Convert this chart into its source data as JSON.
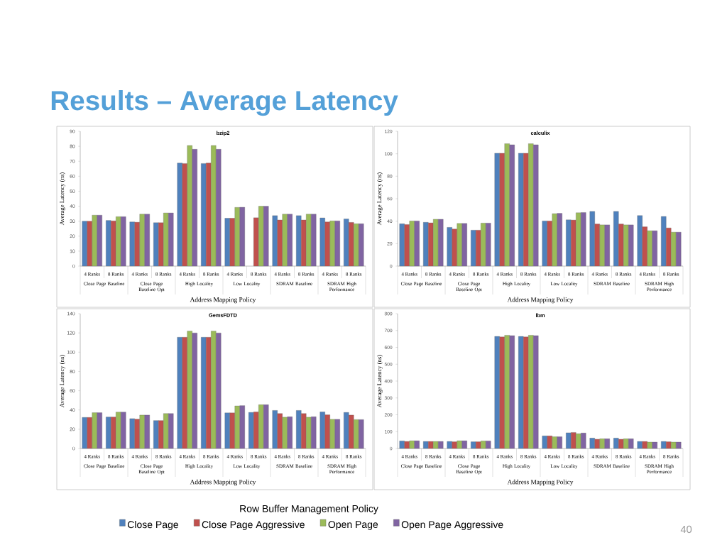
{
  "chart_data": [
    {
      "type": "other",
      "title": "Results – Average Latency",
      "annotations": [
        "40"
      ]
    },
    {
      "type": "bar",
      "title": "bzip2",
      "xlabel": "Address Mapping Policy",
      "ylabel": "Average Latency (ns)",
      "categories": [
        "4 Ranks",
        "8 Ranks",
        "4 Ranks",
        "8 Ranks",
        "4 Ranks",
        "8 Ranks",
        "4 Ranks",
        "8 Ranks",
        "4 Ranks",
        "8 Ranks",
        "4 Ranks",
        "8 Ranks"
      ],
      "annotations": [
        "Close Page Baseline",
        "Close Page Baseline Opt",
        "High Locality",
        "Low Locality",
        "SDRAM Baseline",
        "SDRAM High Performance"
      ],
      "ylim": [
        0,
        90
      ],
      "yticks": [
        0,
        10,
        20,
        30,
        40,
        50,
        60,
        70,
        80,
        90
      ],
      "series": [
        {
          "color": "#4f81bd",
          "values": [
            30,
            30.5,
            29.5,
            29,
            68.8,
            68.5,
            32,
            null,
            33.7,
            33.7,
            32.2,
            31.5
          ]
        },
        {
          "color": "#c0504d",
          "values": [
            30,
            30.2,
            29.3,
            29,
            68.5,
            68.8,
            32,
            32.3,
            30.8,
            30.8,
            29.5,
            29.2
          ]
        },
        {
          "color": "#9bbb59",
          "values": [
            34,
            33,
            34.7,
            35.5,
            80.5,
            80.5,
            39.2,
            40,
            34.7,
            34.7,
            30.2,
            28.3
          ]
        },
        {
          "color": "#8064a2",
          "values": [
            34,
            33,
            34.7,
            35.5,
            78,
            78,
            39.3,
            40,
            34.7,
            34.7,
            30.2,
            28.3
          ]
        }
      ]
    },
    {
      "type": "bar",
      "title": "calculix",
      "xlabel": "Address Mapping Policy",
      "ylabel": "Average Latency (ns)",
      "categories": [
        "4 Ranks",
        "8 Ranks",
        "4 Ranks",
        "8 Ranks",
        "4 Ranks",
        "8 Ranks",
        "4 Ranks",
        "8 Ranks",
        "4 Ranks",
        "8 Ranks",
        "4 Ranks",
        "8 Ranks"
      ],
      "annotations": [
        "Close Page Baseline",
        "Close Page Baseline Opt",
        "High Locality",
        "Low Locality",
        "SDRAM Baseline",
        "SDRAM High Performance"
      ],
      "ylim": [
        0,
        120
      ],
      "yticks": [
        0,
        20,
        40,
        60,
        80,
        100,
        120
      ],
      "series": [
        {
          "color": "#4f81bd",
          "values": [
            37.7,
            39,
            34.5,
            32,
            100.5,
            100.5,
            40.2,
            41.2,
            48.7,
            48.7,
            45,
            44.2
          ]
        },
        {
          "color": "#c0504d",
          "values": [
            37,
            38.5,
            33,
            32,
            100.5,
            100.5,
            40.2,
            41,
            37.5,
            37.5,
            35,
            34
          ]
        },
        {
          "color": "#9bbb59",
          "values": [
            40.2,
            41.7,
            38,
            38.3,
            109,
            109,
            46.7,
            47.5,
            36.7,
            36.7,
            31.5,
            30.2
          ]
        },
        {
          "color": "#8064a2",
          "values": [
            40.2,
            41.7,
            38,
            38.3,
            108,
            108,
            47,
            47.7,
            36.7,
            36.7,
            31.5,
            30.2
          ]
        }
      ]
    },
    {
      "type": "bar",
      "title": "GemsFDTD",
      "xlabel": "Address Mapping Policy",
      "ylabel": "Average Latency (ns)",
      "categories": [
        "4 Ranks",
        "8 Ranks",
        "4 Ranks",
        "8 Ranks",
        "4 Ranks",
        "8 Ranks",
        "4 Ranks",
        "8 Ranks",
        "4 Ranks",
        "8 Ranks",
        "4 Ranks",
        "8 Ranks"
      ],
      "annotations": [
        "Close Page Baseline",
        "Close Page Baseline Opt",
        "High Locality",
        "Low Locality",
        "SDRAM Baseline",
        "SDRAM High Performance"
      ],
      "ylim": [
        0,
        140
      ],
      "yticks": [
        0,
        20,
        40,
        60,
        80,
        100,
        120,
        140
      ],
      "series": [
        {
          "color": "#4f81bd",
          "values": [
            32.3,
            32.7,
            31,
            29,
            115.5,
            115.5,
            37,
            37.5,
            39.5,
            39.5,
            38,
            37.5
          ]
        },
        {
          "color": "#c0504d",
          "values": [
            32.3,
            32.7,
            30.5,
            29,
            115.5,
            115.5,
            37,
            38,
            36.3,
            36.3,
            35,
            34.7
          ]
        },
        {
          "color": "#9bbb59",
          "values": [
            37.2,
            37.8,
            34.7,
            36.3,
            122,
            122,
            44.2,
            45.5,
            32.5,
            32.5,
            30.3,
            30
          ]
        },
        {
          "color": "#8064a2",
          "values": [
            37.2,
            37.8,
            34.7,
            36.3,
            120,
            120,
            44.5,
            45.5,
            33,
            33,
            30.3,
            30
          ]
        }
      ]
    },
    {
      "type": "bar",
      "title": "lbm",
      "xlabel": "Address Mapping Policy",
      "ylabel": "Average Latency (ns)",
      "categories": [
        "4 Ranks",
        "8 Ranks",
        "4 Ranks",
        "8 Ranks",
        "4 Ranks",
        "8 Ranks",
        "4 Ranks",
        "8 Ranks",
        "4 Ranks",
        "8 Ranks",
        "4 Ranks",
        "8 Ranks"
      ],
      "annotations": [
        "Close Page Baseline",
        "Close Page Baseline Opt",
        "High Locality",
        "Low Locality",
        "SDRAM Baseline",
        "SDRAM High Performance"
      ],
      "ylim": [
        0,
        800
      ],
      "yticks": [
        0,
        100,
        200,
        300,
        400,
        500,
        600,
        700,
        800
      ],
      "legend": "bottom",
      "legend_title": "Row Buffer Management Policy",
      "series": [
        {
          "name": "Close Page",
          "color": "#4f81bd",
          "values": [
            45,
            42,
            42,
            40,
            665,
            665,
            75,
            93,
            62,
            62,
            42,
            42
          ]
        },
        {
          "name": "Close Page Aggressive",
          "color": "#c0504d",
          "values": [
            42,
            42,
            40,
            40,
            662,
            662,
            75,
            95,
            55,
            55,
            42,
            40
          ]
        },
        {
          "name": "Open Page",
          "color": "#9bbb59",
          "values": [
            46,
            42,
            46,
            45,
            672,
            672,
            70,
            88,
            58,
            58,
            38,
            38
          ]
        },
        {
          "name": "Open Page Aggressive",
          "color": "#8064a2",
          "values": [
            46,
            42,
            46,
            45,
            670,
            670,
            70,
            92,
            58,
            58,
            38,
            38
          ]
        }
      ]
    }
  ]
}
